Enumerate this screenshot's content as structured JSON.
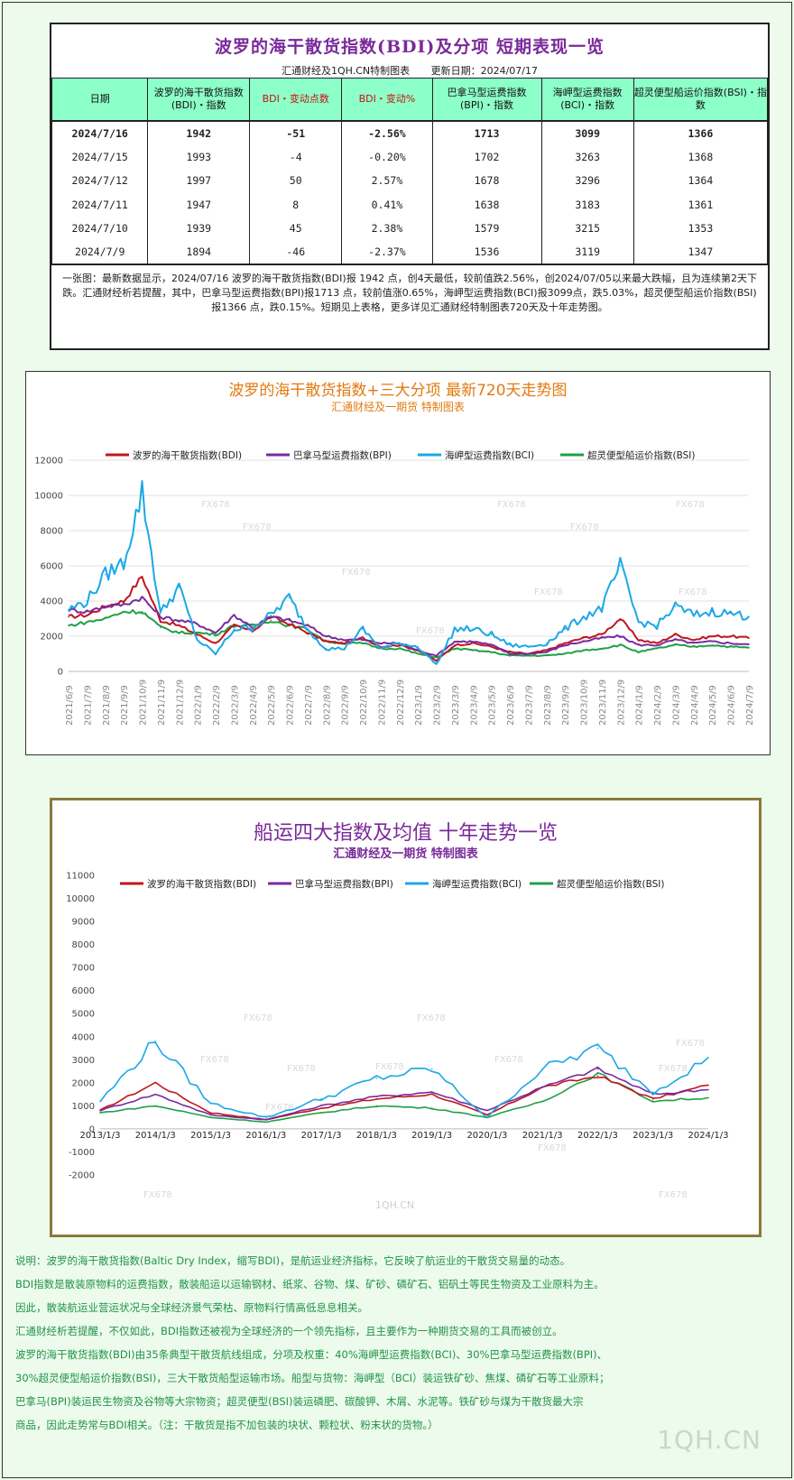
{
  "table": {
    "title": "波罗的海干散货指数(BDI)及分项 短期表现一览",
    "source": "汇通财经及1QH.CN特制图表",
    "update": "更新日期：2024/07/17",
    "headers": [
      "日期",
      "波罗的海干散货指数(BDI)・指数",
      "BDI・变动点数",
      "BDI・变动%",
      "巴拿马型运费指数(BPI)・指数",
      "海岬型运费指数(BCI)・指数",
      "超灵便型船运价指数(BSI)・指数"
    ],
    "rows": [
      [
        "2024/7/16",
        "1942",
        "-51",
        "-2.56%",
        "1713",
        "3099",
        "1366"
      ],
      [
        "2024/7/15",
        "1993",
        "-4",
        "-0.20%",
        "1702",
        "3263",
        "1368"
      ],
      [
        "2024/7/12",
        "1997",
        "50",
        "2.57%",
        "1678",
        "3296",
        "1364"
      ],
      [
        "2024/7/11",
        "1947",
        "8",
        "0.41%",
        "1638",
        "3183",
        "1361"
      ],
      [
        "2024/7/10",
        "1939",
        "45",
        "2.38%",
        "1579",
        "3215",
        "1353"
      ],
      [
        "2024/7/9",
        "1894",
        "-46",
        "-2.37%",
        "1536",
        "3119",
        "1347"
      ]
    ],
    "note": "一张图：最新数据显示，2024/07/16 波罗的海干散货指数(BDI)报 1942 点，创4天最低，较前值跌2.56%，创2024/07/05以来最大跌幅，且为连续第2天下跌。汇通财经析若提醒，其中，巴拿马型运费指数(BPI)报1713 点，较前值涨0.65%，海岬型运费指数(BCI)报3099点，跌5.03%，超灵便型船运价指数(BSI)报1366 点，跌0.15%。短期见上表格，更多详见汇通财经特制图表720天及十年走势图。"
  },
  "chart720": {
    "title": "波罗的海干散货指数+三大分项 最新720天走势图",
    "subtitle": "汇通财经及一期货 特制图表",
    "watermark": "FX678"
  },
  "chart10y": {
    "title": "船运四大指数及均值 十年走势一览",
    "subtitle": "汇通财经及一期货 特制图表",
    "watermark": "FX678",
    "watermark2": "1QH.CN"
  },
  "colors": {
    "BDI": "#c0161d",
    "BPI": "#7a2aa0",
    "BCI": "#1aa8e6",
    "BSI": "#1fa046"
  },
  "chart_data": [
    {
      "type": "line",
      "title": "波罗的海干散货指数+三大分项 最新720天走势图",
      "ylim": [
        0,
        12000
      ],
      "yticks": [
        0,
        2000,
        4000,
        6000,
        8000,
        10000,
        12000
      ],
      "x": [
        "2021/6/9",
        "2021/7/9",
        "2021/8/9",
        "2021/9/9",
        "2021/10/9",
        "2021/11/9",
        "2021/12/9",
        "2022/1/9",
        "2022/2/9",
        "2022/3/9",
        "2022/4/9",
        "2022/5/9",
        "2022/6/9",
        "2022/7/9",
        "2022/8/9",
        "2022/9/9",
        "2022/10/9",
        "2022/11/9",
        "2022/12/9",
        "2023/1/9",
        "2023/2/9",
        "2023/3/9",
        "2023/4/9",
        "2023/5/9",
        "2023/6/9",
        "2023/7/9",
        "2023/8/9",
        "2023/9/9",
        "2023/10/9",
        "2023/11/9",
        "2023/12/9",
        "2024/1/9",
        "2024/2/9",
        "2024/3/9",
        "2024/4/9",
        "2024/5/9",
        "2024/6/9",
        "2024/7/9"
      ],
      "grid": true,
      "legend": "top",
      "series": [
        {
          "name": "波罗的海干散货指数(BDI)",
          "color": "#c0161d",
          "values": [
            3100,
            3200,
            3700,
            4000,
            5400,
            2900,
            2600,
            2100,
            1600,
            2600,
            2300,
            3100,
            2700,
            2200,
            1700,
            1600,
            1900,
            1400,
            1500,
            1200,
            600,
            1500,
            1600,
            1400,
            1100,
            1000,
            1200,
            1600,
            1900,
            2100,
            3000,
            1800,
            1600,
            2100,
            1800,
            2000,
            2000,
            1894
          ]
        },
        {
          "name": "巴拿马型运费指数(BPI)",
          "color": "#7a2aa0",
          "values": [
            3500,
            3400,
            3700,
            3800,
            4200,
            3100,
            2900,
            2700,
            2200,
            3200,
            2500,
            3100,
            2900,
            2600,
            2000,
            1800,
            1800,
            1600,
            1600,
            1200,
            900,
            1700,
            1700,
            1500,
            1000,
            1000,
            1100,
            1500,
            1700,
            1900,
            2000,
            1500,
            1500,
            1800,
            1600,
            1700,
            1600,
            1536
          ]
        },
        {
          "name": "海岬型运费指数(BCI)",
          "color": "#1aa8e6",
          "values": [
            3500,
            4000,
            5500,
            6200,
            10200,
            3300,
            4800,
            1800,
            1000,
            2400,
            2500,
            3200,
            4200,
            2400,
            1300,
            1300,
            2400,
            1300,
            1600,
            1400,
            400,
            2400,
            2400,
            2100,
            1500,
            1400,
            1600,
            2400,
            3100,
            3600,
            6000,
            2800,
            2600,
            3700,
            3200,
            3400,
            3300,
            3119
          ]
        },
        {
          "name": "超灵便型船运价指数(BSI)",
          "color": "#1fa046",
          "values": [
            2600,
            2800,
            3000,
            3400,
            3400,
            2500,
            2200,
            2200,
            2100,
            2600,
            2600,
            2900,
            2600,
            2400,
            1700,
            1600,
            1600,
            1300,
            1300,
            1000,
            800,
            1300,
            1200,
            1100,
            900,
            900,
            900,
            1000,
            1200,
            1300,
            1500,
            1100,
            1300,
            1500,
            1400,
            1500,
            1400,
            1347
          ]
        }
      ]
    },
    {
      "type": "line",
      "title": "船运四大指数及均值 十年走势一览",
      "ylim": [
        -2000,
        11000
      ],
      "yticks": [
        -2000,
        -1000,
        0,
        1000,
        2000,
        3000,
        4000,
        5000,
        6000,
        7000,
        8000,
        9000,
        10000,
        11000
      ],
      "x": [
        "2013/1/3",
        "2014/1/3",
        "2015/1/3",
        "2016/1/3",
        "2017/1/3",
        "2018/1/3",
        "2019/1/3",
        "2020/1/3",
        "2021/1/3",
        "2022/1/3",
        "2023/1/3",
        "2024/1/3"
      ],
      "grid": false,
      "legend": "top",
      "series": [
        {
          "name": "波罗的海干散货指数(BDI)",
          "color": "#c0161d",
          "values": [
            800,
            2000,
            700,
            400,
            900,
            1300,
            1500,
            600,
            1800,
            2300,
            1300,
            1900
          ]
        },
        {
          "name": "巴拿马型运费指数(BPI)",
          "color": "#7a2aa0",
          "values": [
            800,
            1500,
            600,
            400,
            1000,
            1400,
            1600,
            800,
            1800,
            2600,
            1500,
            1700
          ]
        },
        {
          "name": "海岬型运费指数(BCI)",
          "color": "#1aa8e6",
          "values": [
            1200,
            3800,
            1100,
            500,
            1300,
            2200,
            2600,
            500,
            2600,
            3500,
            1600,
            3100
          ]
        },
        {
          "name": "超灵便型船运价指数(BSI)",
          "color": "#1fa046",
          "values": [
            700,
            1000,
            500,
            300,
            700,
            1000,
            900,
            500,
            1200,
            2400,
            1200,
            1350
          ]
        }
      ]
    }
  ],
  "notes": [
    "说明：波罗的海干散货指数(Baltic Dry Index，缩写BDI)，是航运业经济指标，它反映了航运业的干散货交易量的动态。",
    "BDI指数是散装原物料的运费指数，散装船运以运输钢材、纸浆、谷物、煤、矿砂、磷矿石、铝矾土等民生物资及工业原料为主。",
    "因此，散装航运业营运状况与全球经济景气荣枯、原物料行情高低息息相关。",
    "汇通财经析若提醒，不仅如此，BDI指数还被视为全球经济的一个领先指标，且主要作为一种期货交易的工具而被创立。",
    "波罗的海干散货指数(BDI)由35条典型干散货航线组成，分项及权重：40%海岬型运费指数(BCI)、30%巴拿马型运费指数(BPI)、",
    "30%超灵便型船运价指数(BSI)，三大干散货船型运输市场。船型与货物：海岬型（BCI）装运铁矿砂、焦煤、磷矿石等工业原料；",
    "巴拿马(BPI)装运民生物资及谷物等大宗物资；超灵便型(BSI)装运磷肥、碳酸钾、木屑、水泥等。铁矿砂与煤为干散货最大宗",
    "商品，因此走势常与BDI相关。（注：干散货是指不加包装的块状、颗粒状、粉末状的货物。）"
  ],
  "brand": "1QH.CN"
}
